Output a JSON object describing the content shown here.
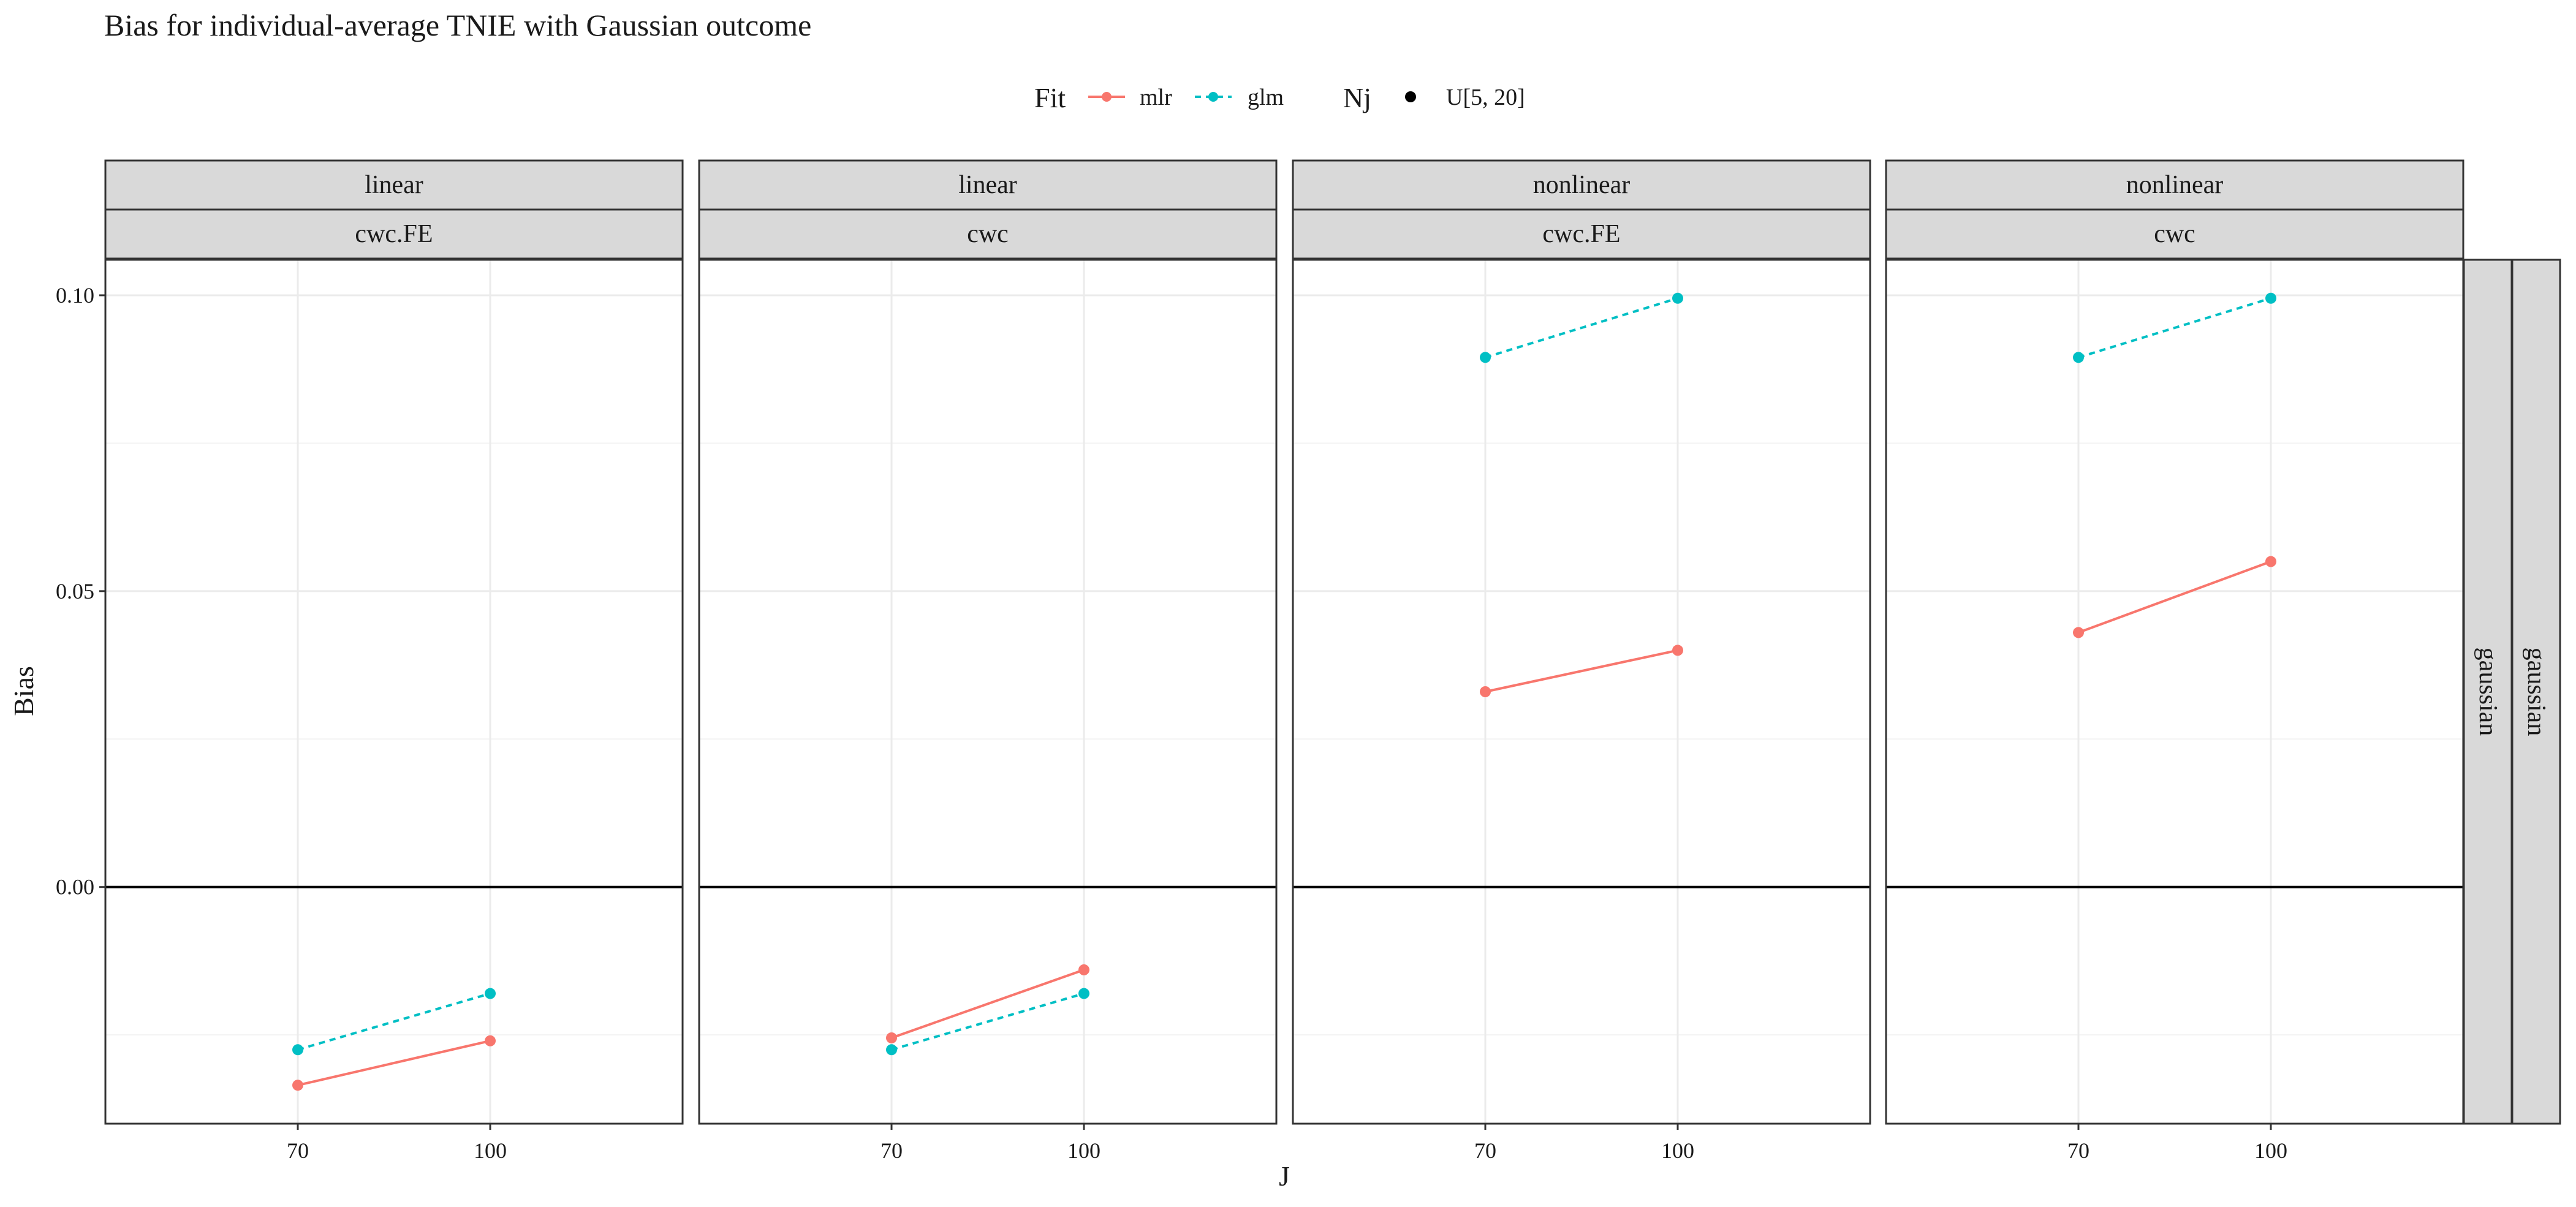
{
  "chart_data": {
    "type": "line",
    "title": "Bias for individual-average TNIE with Gaussian outcome",
    "xlabel": "J",
    "ylabel": "Bias",
    "x": [
      70,
      100
    ],
    "x_tick_labels": [
      "70",
      "100"
    ],
    "xlim": [
      40,
      130
    ],
    "ylim": [
      -0.04,
      0.106
    ],
    "y_ticks": [
      0.0,
      0.05,
      0.1
    ],
    "y_tick_labels": [
      "0.00",
      "0.05",
      "0.10"
    ],
    "reference_line_y": 0,
    "grid": true,
    "legend": {
      "position": "top",
      "fit_title": "Fit",
      "fit_entries": [
        {
          "name": "mlr",
          "color": "#F8766D",
          "linetype": "solid"
        },
        {
          "name": "glm",
          "color": "#00BFC4",
          "linetype": "dashed"
        }
      ],
      "nj_title": "Nj",
      "nj_entries": [
        {
          "name": "U[5, 20]",
          "color": "#000000"
        }
      ]
    },
    "row_strips": [
      "gaussian",
      "gaussian"
    ],
    "panels": [
      {
        "strip_top": "linear",
        "strip_bottom": "cwc.FE",
        "series": [
          {
            "name": "mlr",
            "values": [
              -0.0335,
              -0.026
            ]
          },
          {
            "name": "glm",
            "values": [
              -0.0275,
              -0.018
            ]
          }
        ]
      },
      {
        "strip_top": "linear",
        "strip_bottom": "cwc",
        "series": [
          {
            "name": "mlr",
            "values": [
              -0.0255,
              -0.014
            ]
          },
          {
            "name": "glm",
            "values": [
              -0.0275,
              -0.018
            ]
          }
        ]
      },
      {
        "strip_top": "nonlinear",
        "strip_bottom": "cwc.FE",
        "series": [
          {
            "name": "mlr",
            "values": [
              0.033,
              0.04
            ]
          },
          {
            "name": "glm",
            "values": [
              0.0895,
              0.0995
            ]
          }
        ]
      },
      {
        "strip_top": "nonlinear",
        "strip_bottom": "cwc",
        "series": [
          {
            "name": "mlr",
            "values": [
              0.043,
              0.055
            ]
          },
          {
            "name": "glm",
            "values": [
              0.0895,
              0.0995
            ]
          }
        ]
      }
    ]
  }
}
